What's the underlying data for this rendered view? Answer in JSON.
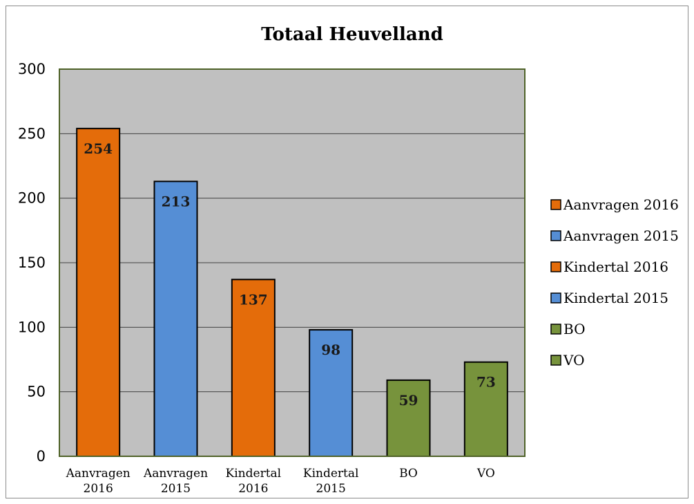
{
  "chart_data": {
    "type": "bar",
    "title": "Totaal Heuvelland",
    "xlabel": "",
    "ylabel": "",
    "ylim": [
      0,
      300
    ],
    "yticks": [
      0,
      50,
      100,
      150,
      200,
      250,
      300
    ],
    "grid": true,
    "legend_position": "right",
    "categories": [
      [
        "Aanvragen",
        "2016"
      ],
      [
        "Aanvragen",
        "2015"
      ],
      [
        "Kindertal",
        "2016"
      ],
      [
        "Kindertal",
        "2015"
      ],
      [
        "BO"
      ],
      [
        "VO"
      ]
    ],
    "series": [
      {
        "name": "Aanvragen 2016",
        "values": [
          254,
          null,
          null,
          null,
          null,
          null
        ],
        "color": "#e46c0a"
      },
      {
        "name": "Aanvragen 2015",
        "values": [
          null,
          213,
          null,
          null,
          null,
          null
        ],
        "color": "#558ed5"
      },
      {
        "name": "Kindertal 2016",
        "values": [
          null,
          null,
          137,
          null,
          null,
          null
        ],
        "color": "#e46c0a"
      },
      {
        "name": "Kindertal 2015",
        "values": [
          null,
          null,
          null,
          98,
          null,
          null
        ],
        "color": "#558ed5"
      },
      {
        "name": "BO",
        "values": [
          null,
          null,
          null,
          null,
          59,
          null
        ],
        "color": "#77933c"
      },
      {
        "name": "VO",
        "values": [
          null,
          null,
          null,
          null,
          null,
          73
        ],
        "color": "#77933c"
      }
    ],
    "plot_background": "#c0c0c0",
    "plot_border_color": "#4f6228",
    "gridline_color": "#404040"
  }
}
